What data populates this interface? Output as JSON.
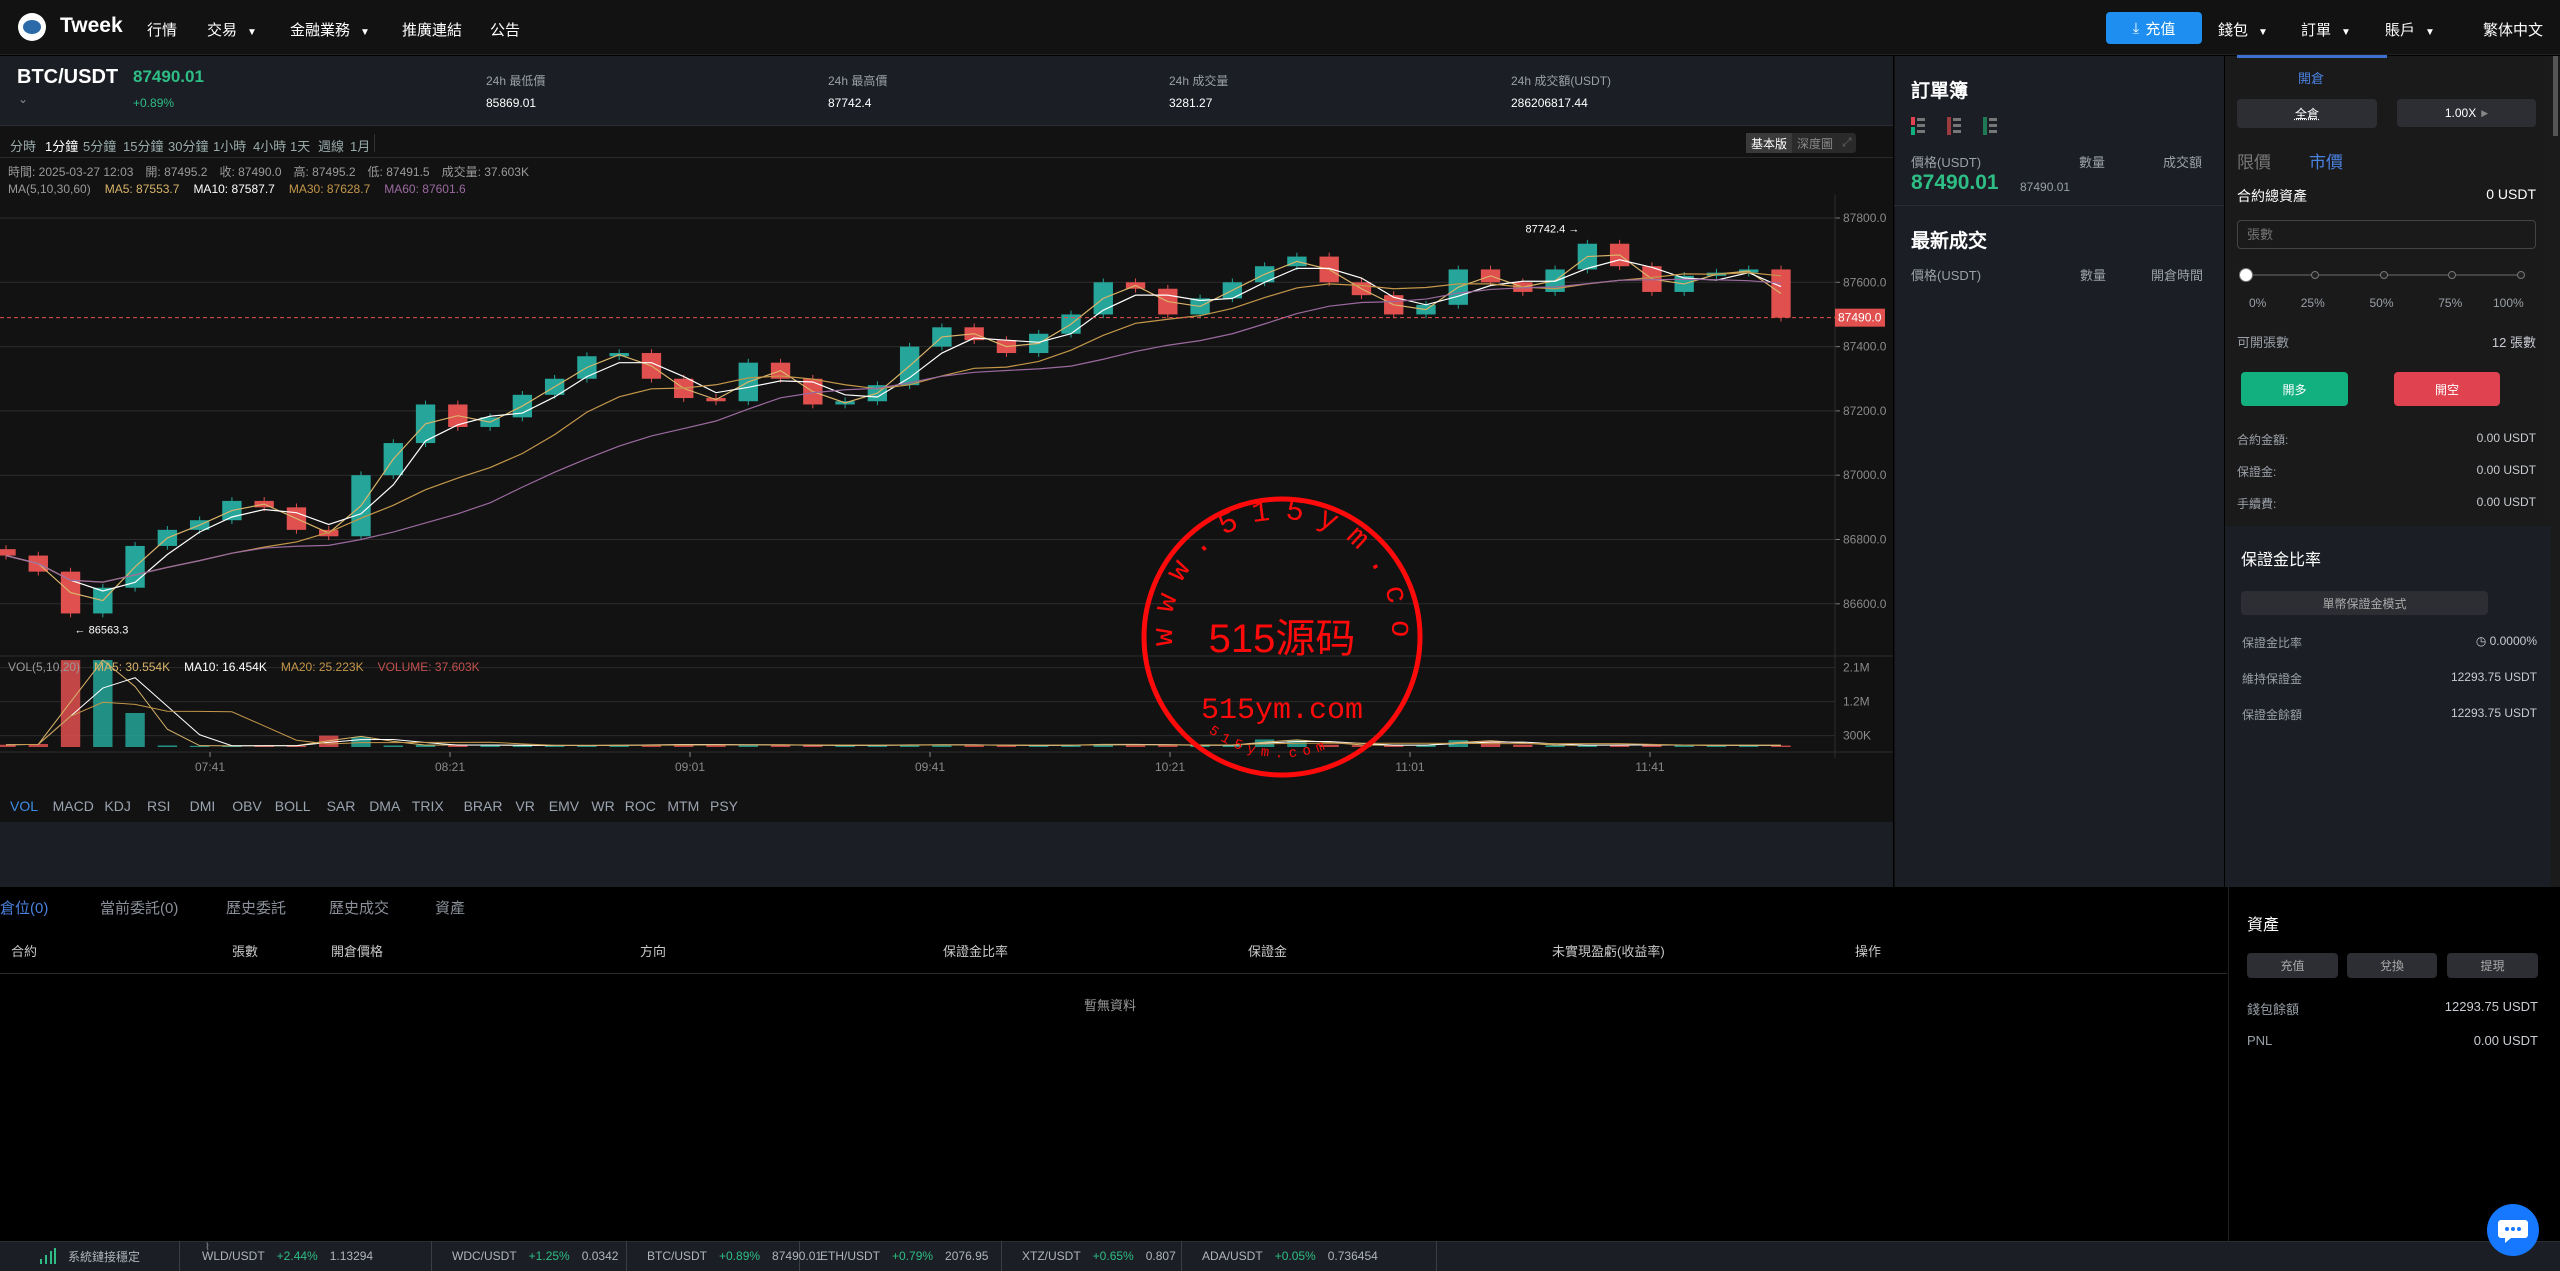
{
  "nav": {
    "brand": "Tweek",
    "items": [
      "行情",
      "交易",
      "金融業務",
      "推廣連結",
      "公告"
    ],
    "deposit": "充值",
    "right": [
      "錢包",
      "訂單",
      "賬戶"
    ],
    "lang": "繁体中文"
  },
  "ticker": {
    "symbol": "BTC/USDT",
    "price": "87490.01",
    "change": "+0.89%",
    "stats": [
      {
        "label": "24h 最低價",
        "value": "85869.01"
      },
      {
        "label": "24h 最高價",
        "value": "87742.4"
      },
      {
        "label": "24h 成交量",
        "value": "3281.27"
      },
      {
        "label": "24h 成交額(USDT)",
        "value": "286206817.44"
      }
    ]
  },
  "chart": {
    "timeframes": [
      "分時",
      "1分鐘",
      "5分鐘",
      "15分鐘",
      "30分鐘",
      "1小時",
      "4小時",
      "1天",
      "週線",
      "1月"
    ],
    "active_timeframe": "1分鐘",
    "views": [
      "基本版",
      "深度圖"
    ],
    "info_line": "時間: 2025-03-27 12:03　開: 87495.2　收: 87490.0　高: 87495.2　低: 87491.5　成交量: 37.603K",
    "ma": {
      "label": "MA(5,10,30,60)",
      "ma5": "MA5: 87553.7",
      "ma10": "MA10: 87587.7",
      "ma30": "MA30: 87628.7",
      "ma60": "MA60: 87601.6"
    },
    "vol": {
      "label": "VOL(5,10,20)",
      "ma5": "MA5: 30.554K",
      "ma10": "MA10: 16.454K",
      "ma20": "MA20: 25.223K",
      "volume": "VOLUME: 37.603K"
    },
    "indicators": [
      "VOL",
      "MACD",
      "KDJ",
      "RSI",
      "DMI",
      "OBV",
      "BOLL",
      "SAR",
      "DMA",
      "TRIX",
      "BRAR",
      "VR",
      "EMV",
      "WR",
      "ROC",
      "MTM",
      "PSY"
    ],
    "active_indicator": "VOL",
    "watermark": {
      "ring_text": "www.515ym.com",
      "center": "515源码",
      "sub": "515ym.com",
      "bottom": "515ym.com"
    }
  },
  "chart_data": {
    "type": "candlestick",
    "ylim": [
      86480,
      87860
    ],
    "y_ticks": [
      "87800.0",
      "87600.0",
      "87400.0",
      "87200.0",
      "87000.0",
      "86800.0",
      "86600.0"
    ],
    "last_price_tag": "87490.0",
    "high_marker": "87742.4",
    "low_marker": "86563.3",
    "x_ticks": [
      "07:41",
      "08:21",
      "09:01",
      "09:41",
      "10:21",
      "11:01",
      "11:41"
    ],
    "vol_ticks": [
      "2.1M",
      "1.2M",
      "300K"
    ],
    "closes": [
      86750,
      86700,
      86570,
      86650,
      86780,
      86830,
      86860,
      86920,
      86900,
      86830,
      86810,
      87000,
      87100,
      87220,
      87150,
      87180,
      87250,
      87300,
      87370,
      87380,
      87300,
      87240,
      87230,
      87350,
      87300,
      87220,
      87230,
      87280,
      87400,
      87460,
      87420,
      87380,
      87440,
      87500,
      87600,
      87580,
      87500,
      87550,
      87600,
      87650,
      87680,
      87600,
      87560,
      87500,
      87530,
      87640,
      87600,
      87570,
      87640,
      87720,
      87650,
      87570,
      87620,
      87630,
      87640,
      87490
    ],
    "volumes_k": [
      60,
      80,
      2300,
      2300,
      900,
      40,
      30,
      30,
      40,
      30,
      300,
      260,
      40,
      60,
      50,
      50,
      40,
      40,
      40,
      50,
      60,
      70,
      60,
      50,
      60,
      40,
      40,
      50,
      60,
      60,
      50,
      40,
      40,
      60,
      80,
      60,
      50,
      40,
      60,
      200,
      180,
      60,
      50,
      40,
      60,
      180,
      150,
      60,
      40,
      50,
      60,
      60,
      40,
      40,
      50,
      38
    ]
  },
  "orderbook": {
    "title": "訂單簿",
    "headers": [
      "價格(USDT)",
      "數量",
      "成交額"
    ],
    "price": "87490.01",
    "sub_price": "87490.01",
    "trades_title": "最新成交",
    "trade_headers": [
      "價格(USDT)",
      "數量",
      "開倉時間"
    ]
  },
  "form": {
    "tab": "開倉",
    "margin_mode": "全倉",
    "leverage": "1.00X",
    "order_types": [
      "限價",
      "市價"
    ],
    "active_order_type": "市價",
    "total_label": "合約總資產",
    "total_value": "0 USDT",
    "qty_placeholder": "張數",
    "slider_pct": 0,
    "slider_labels": [
      "0%",
      "25%",
      "50%",
      "75%",
      "100%"
    ],
    "avail_label": "可開張數",
    "avail_value": "12 張數",
    "buy": "開多",
    "sell": "開空",
    "rows": [
      {
        "label": "合約金額:",
        "value": "0.00 USDT"
      },
      {
        "label": "保證金:",
        "value": "0.00 USDT"
      },
      {
        "label": "手續費:",
        "value": "0.00 USDT"
      }
    ],
    "buy_color": "#12b07f",
    "sell_color": "#e0434f"
  },
  "margin": {
    "title": "保證金比率",
    "mode": "單幣保證金模式",
    "rows": [
      {
        "label": "保證金比率",
        "value": "0.0000%"
      },
      {
        "label": "維持保證金",
        "value": "12293.75 USDT"
      },
      {
        "label": "保證金餘額",
        "value": "12293.75 USDT"
      }
    ]
  },
  "positions": {
    "tabs": [
      "倉位(0)",
      "當前委託(0)",
      "歷史委託",
      "歷史成交",
      "資產"
    ],
    "headers": [
      "合約",
      "張數",
      "開倉價格",
      "方向",
      "保證金比率",
      "保證金",
      "未實現盈虧(收益率)",
      "操作"
    ],
    "empty": "暫無資料"
  },
  "assets": {
    "title": "資產",
    "buttons": [
      "充值",
      "兌換",
      "提現"
    ],
    "rows": [
      {
        "label": "錢包餘額",
        "value": "12293.75 USDT"
      },
      {
        "label": "PNL",
        "value": "0.00 USDT"
      }
    ]
  },
  "footer": {
    "status": "系統鏈接穩定",
    "tickers": [
      {
        "pair": "WLD/USDT",
        "change": "+2.44%",
        "price": "1.13294"
      },
      {
        "pair": "WDC/USDT",
        "change": "+1.25%",
        "price": "0.0342"
      },
      {
        "pair": "BTC/USDT",
        "change": "+0.89%",
        "price": "87490.01"
      },
      {
        "pair": "ETH/USDT",
        "change": "+0.79%",
        "price": "2076.95"
      },
      {
        "pair": "XTZ/USDT",
        "change": "+0.65%",
        "price": "0.807"
      },
      {
        "pair": "ADA/USDT",
        "change": "+0.05%",
        "price": "0.736454"
      }
    ]
  }
}
